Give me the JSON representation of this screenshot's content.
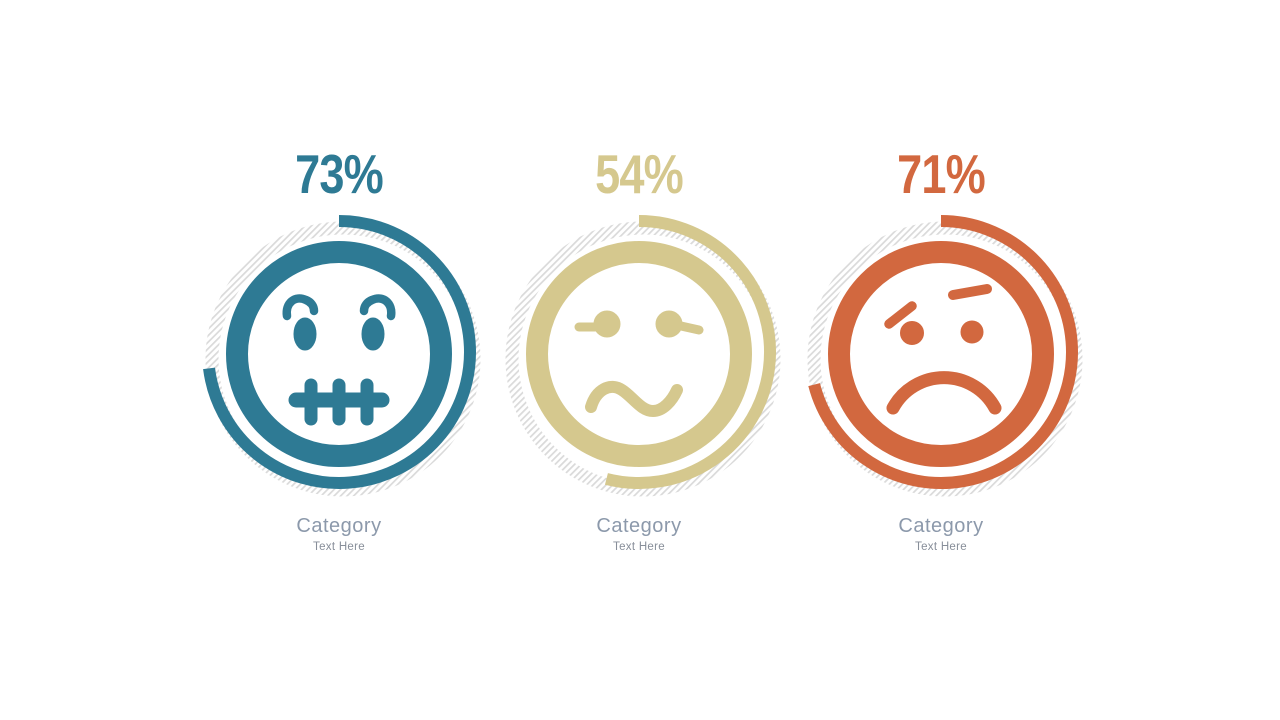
{
  "hatch_color": "#DADADA",
  "chart_data": {
    "type": "donut",
    "title": "",
    "categories": [
      "Category",
      "Category",
      "Category"
    ],
    "values": [
      73,
      54,
      71
    ],
    "value_labels": [
      "73%",
      "54%",
      "71%"
    ],
    "colors": [
      "#2E7A94",
      "#D5C88E",
      "#D2683F"
    ],
    "track_style": "diagonal-hatch",
    "start_angle": "top",
    "direction": "clockwise",
    "legend": "none"
  },
  "figures": [
    {
      "percent": 73,
      "percent_label": "73%",
      "mood": "zipped-mouth-face",
      "color": "#2E7A94",
      "category": "Category",
      "subtext": "Text Here"
    },
    {
      "percent": 54,
      "percent_label": "54%",
      "mood": "confused-squiggle-mouth-face",
      "color": "#D5C88E",
      "category": "Category",
      "subtext": "Text Here"
    },
    {
      "percent": 71,
      "percent_label": "71%",
      "mood": "sad-frown-face",
      "color": "#D2683F",
      "category": "Category",
      "subtext": "Text Here"
    }
  ]
}
